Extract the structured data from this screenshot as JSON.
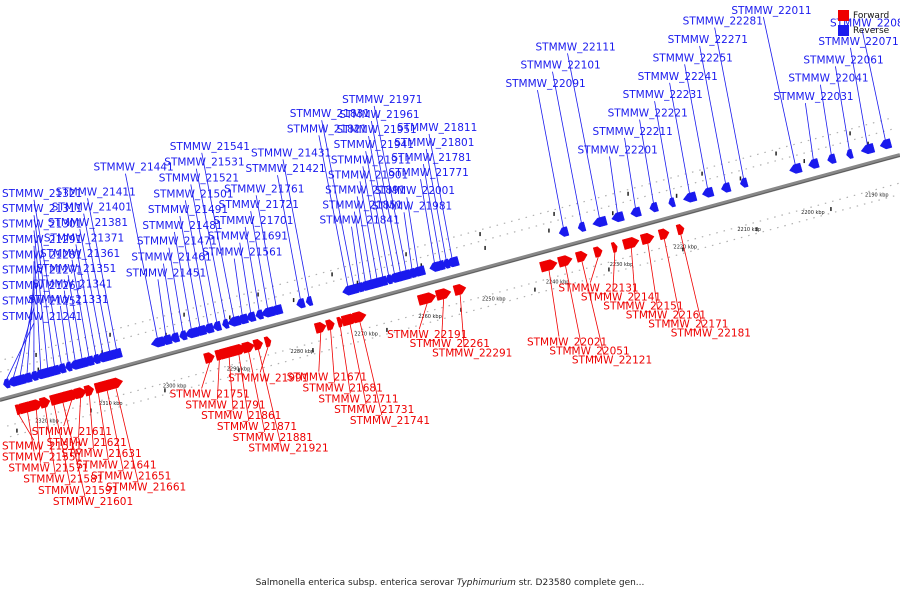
{
  "caption": {
    "pre": "Salmonella enterica subsp. enterica serovar ",
    "italic": "Typhimurium",
    "post": " str. D23580 complete gen..."
  },
  "legend": [
    {
      "label": "Forward",
      "color": "#ee0000"
    },
    {
      "label": "Reverse",
      "color": "#1a1aee"
    }
  ],
  "colors": {
    "forward": "#ee0000",
    "reverse": "#1a1aee",
    "backbone": "#888888"
  },
  "track": {
    "kbp_min": 2185,
    "kbp_max": 2326
  },
  "scale_ticks": [
    "2190 kbp",
    "2200 kbp",
    "2210 kbp",
    "2220 kbp",
    "2230 kbp",
    "2240 kbp",
    "2250 kbp",
    "2260 kbp",
    "2270 kbp",
    "2280 kbp",
    "2290 kbp",
    "2300 kbp",
    "2310 kbp",
    "2320 kbp"
  ],
  "reverse_genes": [
    "STMMW_21241",
    "STMMW_21251",
    "STMMW_21261",
    "STMMW_21271",
    "STMMW_21281",
    "STMMW_21291",
    "STMMW_21301",
    "STMMW_21311",
    "STMMW_21321",
    "STMMW_21331",
    "STMMW_21341",
    "STMMW_21351",
    "STMMW_21361",
    "STMMW_21371",
    "STMMW_21381",
    "STMMW_21401",
    "STMMW_21411",
    "STMMW_21421",
    "STMMW_21431",
    "STMMW_21441",
    "STMMW_21451",
    "STMMW_21461",
    "STMMW_21471",
    "STMMW_21481",
    "STMMW_21491",
    "STMMW_21501",
    "STMMW_21521",
    "STMMW_21531",
    "STMMW_21541",
    "STMMW_21561",
    "STMMW_21691",
    "STMMW_21701",
    "STMMW_21721",
    "STMMW_21761",
    "STMMW_21771",
    "STMMW_21781",
    "STMMW_21801",
    "STMMW_21811",
    "STMMW_21821",
    "STMMW_21831",
    "STMMW_21841",
    "STMMW_21851",
    "STMMW_21891",
    "STMMW_21901",
    "STMMW_21911",
    "STMMW_21941",
    "STMMW_21951",
    "STMMW_21961",
    "STMMW_21971",
    "STMMW_21981",
    "STMMW_22001",
    "STMMW_22011",
    "STMMW_22031",
    "STMMW_22041",
    "STMMW_22061",
    "STMMW_22071",
    "STMMW_22081",
    "STMMW_22091",
    "STMMW_22101",
    "STMMW_22111",
    "STMMW_22201",
    "STMMW_22211",
    "STMMW_22221",
    "STMMW_22231",
    "STMMW_22241",
    "STMMW_22251",
    "STMMW_22271",
    "STMMW_22281"
  ],
  "forward_genes": [
    "STMMW_21511",
    "STMMW_21551",
    "STMMW_21571",
    "STMMW_21581",
    "STMMW_21591",
    "STMMW_21601",
    "STMMW_21611",
    "STMMW_21621",
    "STMMW_21631",
    "STMMW_21641",
    "STMMW_21651",
    "STMMW_21661",
    "STMMW_21671",
    "STMMW_21681",
    "STMMW_21711",
    "STMMW_21731",
    "STMMW_21741",
    "STMMW_21751",
    "STMMW_21791",
    "STMMW_21861",
    "STMMW_21871",
    "STMMW_21881",
    "STMMW_21921",
    "STMMW_21991",
    "STMMW_22021",
    "STMMW_22051",
    "STMMW_22121",
    "STMMW_22131",
    "STMMW_22141",
    "STMMW_22151",
    "STMMW_22161",
    "STMMW_22171",
    "STMMW_22181",
    "STMMW_22191",
    "STMMW_22261",
    "STMMW_22291"
  ]
}
